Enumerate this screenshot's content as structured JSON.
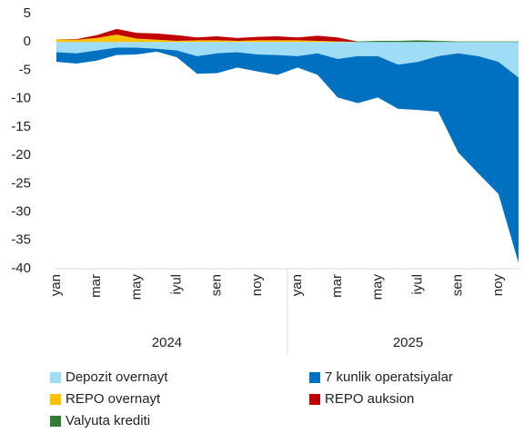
{
  "chart_data": {
    "type": "area",
    "stacked": true,
    "categories": [
      "yan",
      null,
      "mar",
      null,
      "may",
      null,
      "iyul",
      null,
      "sen",
      null,
      "noy",
      null,
      "yan",
      null,
      "mar",
      null,
      "may",
      null,
      "iyul",
      null,
      "sen",
      null,
      "noy",
      null
    ],
    "groups": [
      "2024",
      "2025"
    ],
    "ylim": [
      -40,
      5
    ],
    "yticks": [
      -40,
      -35,
      -30,
      -25,
      -20,
      -15,
      -10,
      -5,
      0,
      5
    ],
    "legend": "bottom",
    "series": [
      {
        "name": "Depozit overnayt",
        "color": "#9fdcf5",
        "values": [
          -1.8,
          -2.0,
          -1.5,
          -1.0,
          -1.0,
          -1.2,
          -1.5,
          -2.5,
          -2.0,
          -1.8,
          -2.2,
          -2.3,
          -2.5,
          -2.0,
          -3.0,
          -2.5,
          -2.5,
          -4.0,
          -3.5,
          -2.5,
          -2.0,
          -2.5,
          -3.5,
          -6.3
        ]
      },
      {
        "name": "7 kunlik operatsiyalar",
        "color": "#0070c0",
        "values": [
          -1.7,
          -1.8,
          -1.8,
          -1.3,
          -1.2,
          -0.5,
          -1.2,
          -3.1,
          -3.5,
          -2.7,
          -3.0,
          -3.5,
          -2.0,
          -3.8,
          -6.8,
          -8.3,
          -7.3,
          -7.8,
          -8.5,
          -9.8,
          -17.5,
          -20.7,
          -23.3,
          -32.7
        ]
      },
      {
        "name": "REPO overnayt",
        "color": "#ffc000",
        "values": [
          0.5,
          0.4,
          0.7,
          1.3,
          0.6,
          0.4,
          0.2,
          0.3,
          0.3,
          0.2,
          0.3,
          0.3,
          0.3,
          0.2,
          0.1,
          0,
          0,
          0,
          0,
          0,
          0,
          0,
          0,
          0
        ]
      },
      {
        "name": "REPO auksion",
        "color": "#c00000",
        "values": [
          0,
          0.1,
          0.5,
          1.0,
          1.0,
          1.1,
          1.0,
          0.5,
          0.7,
          0.5,
          0.6,
          0.7,
          0.5,
          0.9,
          0.7,
          0,
          0,
          0,
          0,
          0,
          0,
          0,
          0,
          0
        ]
      },
      {
        "name": "Valyuta krediti",
        "color": "#2e7d32",
        "values": [
          0,
          0,
          0,
          0,
          0,
          0,
          0,
          0,
          0,
          0,
          0,
          0,
          0,
          0,
          0,
          0.1,
          0.2,
          0.2,
          0.3,
          0.2,
          0.1,
          0.1,
          0.1,
          0.1
        ]
      }
    ]
  }
}
